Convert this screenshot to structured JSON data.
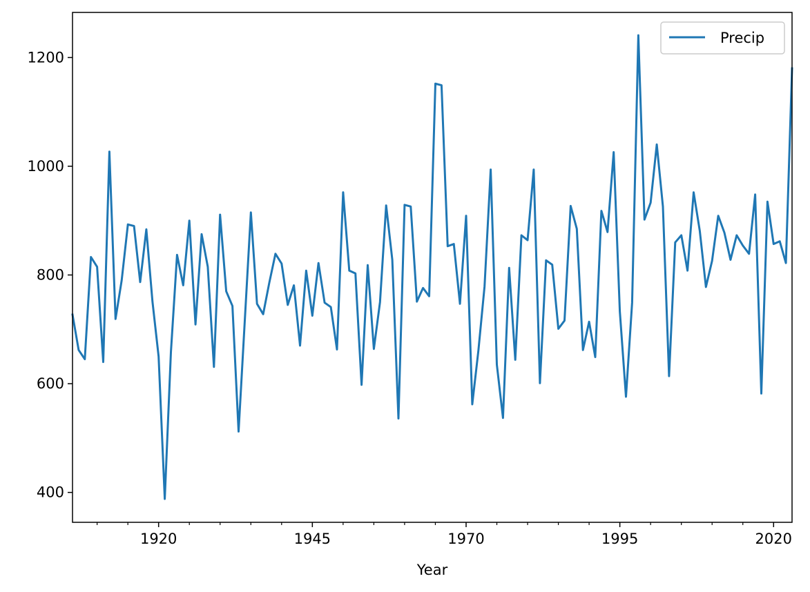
{
  "chart_data": {
    "type": "line",
    "title": "",
    "xlabel": "Year",
    "ylabel": "",
    "xlim": [
      1906,
      2023
    ],
    "ylim": [
      345,
      1283
    ],
    "x_major_ticks": [
      1920,
      1945,
      1970,
      1995,
      2020
    ],
    "x_minor_ticks": [
      1910,
      1915,
      1925,
      1930,
      1935,
      1940,
      1950,
      1955,
      1960,
      1965,
      1975,
      1980,
      1985,
      1990,
      2000,
      2005,
      2010,
      2015
    ],
    "y_ticks": [
      400,
      600,
      800,
      1000,
      1200
    ],
    "grid": false,
    "legend_position": "top-right",
    "series": [
      {
        "name": "Precip",
        "color": "#1f77b4",
        "x": [
          1906,
          1907,
          1908,
          1909,
          1910,
          1911,
          1912,
          1913,
          1914,
          1915,
          1916,
          1917,
          1918,
          1919,
          1920,
          1921,
          1922,
          1923,
          1924,
          1925,
          1926,
          1927,
          1928,
          1929,
          1930,
          1931,
          1932,
          1933,
          1934,
          1935,
          1936,
          1937,
          1938,
          1939,
          1940,
          1941,
          1942,
          1943,
          1944,
          1945,
          1946,
          1947,
          1948,
          1949,
          1950,
          1951,
          1952,
          1953,
          1954,
          1955,
          1956,
          1957,
          1958,
          1959,
          1960,
          1961,
          1962,
          1963,
          1964,
          1965,
          1966,
          1967,
          1968,
          1969,
          1970,
          1971,
          1972,
          1973,
          1974,
          1975,
          1976,
          1977,
          1978,
          1979,
          1980,
          1981,
          1982,
          1983,
          1984,
          1985,
          1986,
          1987,
          1988,
          1989,
          1990,
          1991,
          1992,
          1993,
          1994,
          1995,
          1996,
          1997,
          1998,
          1999,
          2000,
          2001,
          2002,
          2003,
          2004,
          2005,
          2006,
          2007,
          2008,
          2009,
          2010,
          2011,
          2012,
          2013,
          2014,
          2015,
          2016,
          2017,
          2018,
          2019,
          2020,
          2021,
          2022,
          2023
        ],
        "values": [
          727,
          662,
          645,
          833,
          815,
          640,
          1027,
          719,
          790,
          893,
          890,
          787,
          884,
          751,
          650,
          388,
          658,
          837,
          781,
          900,
          709,
          875,
          815,
          631,
          911,
          770,
          743,
          512,
          714,
          915,
          747,
          728,
          786,
          839,
          821,
          745,
          781,
          670,
          808,
          725,
          822,
          749,
          741,
          663,
          952,
          808,
          803,
          598,
          818,
          664,
          750,
          928,
          828,
          536,
          929,
          926,
          751,
          776,
          761,
          1152,
          1149,
          853,
          857,
          747,
          909,
          562,
          661,
          779,
          994,
          635,
          537,
          813,
          644,
          873,
          864,
          994,
          601,
          827,
          819,
          701,
          716,
          927,
          885,
          662,
          714,
          649,
          918,
          879,
          1026,
          733,
          576,
          749,
          1241,
          902,
          933,
          1040,
          926,
          614,
          860,
          873,
          808,
          952,
          881,
          778,
          826,
          909,
          878,
          828,
          873,
          854,
          839,
          948,
          582,
          935,
          857,
          862,
          822,
          1180
        ]
      }
    ]
  }
}
